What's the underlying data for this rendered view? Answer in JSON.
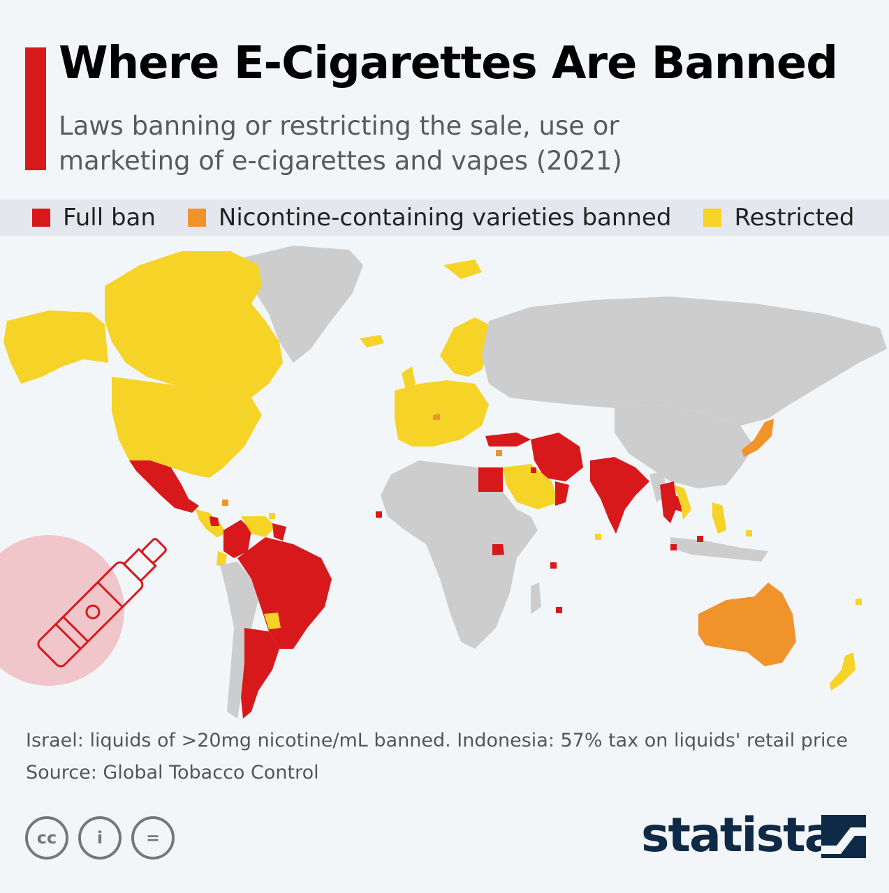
{
  "header": {
    "title": "Where E-Cigarettes Are Banned",
    "subtitle_line1": "Laws banning or restricting the sale, use or",
    "subtitle_line2": "marketing of e-cigarettes and vapes (2021)"
  },
  "legend": {
    "items": [
      {
        "label": "Full ban",
        "color": "#d7191c"
      },
      {
        "label": "Nicontine-containing varieties banned",
        "color": "#f0932b"
      },
      {
        "label": "Restricted",
        "color": "#f5d327"
      }
    ]
  },
  "map": {
    "no_data_color": "#cdcdcd",
    "full_ban": [
      "Mexico",
      "Brazil",
      "Argentina",
      "Venezuela",
      "Colombia",
      "India",
      "Iran",
      "Egypt",
      "Thailand",
      "Cambodia",
      "Turkey",
      "Uganda",
      "Oman",
      "Nicaragua",
      "Uruguay",
      "Mauritius",
      "Seychelles"
    ],
    "nicotine_banned": [
      "Australia",
      "Japan"
    ],
    "restricted": [
      "Canada",
      "United States",
      "Greenland-excluded",
      "Iceland",
      "Norway",
      "Sweden",
      "Finland",
      "United Kingdom",
      "France",
      "Spain",
      "Germany",
      "Italy",
      "Poland",
      "Saudi Arabia",
      "Philippines",
      "Vietnam",
      "New Zealand",
      "Paraguay",
      "Ecuador",
      "Guyana"
    ]
  },
  "footer": {
    "note": "Israel: liquids of >20mg nicotine/mL banned. Indonesia: 57% tax on liquids' retail price",
    "source": "Source: Global Tobacco Control",
    "cc_labels": [
      "cc",
      "i",
      "="
    ],
    "brand": "statista"
  }
}
